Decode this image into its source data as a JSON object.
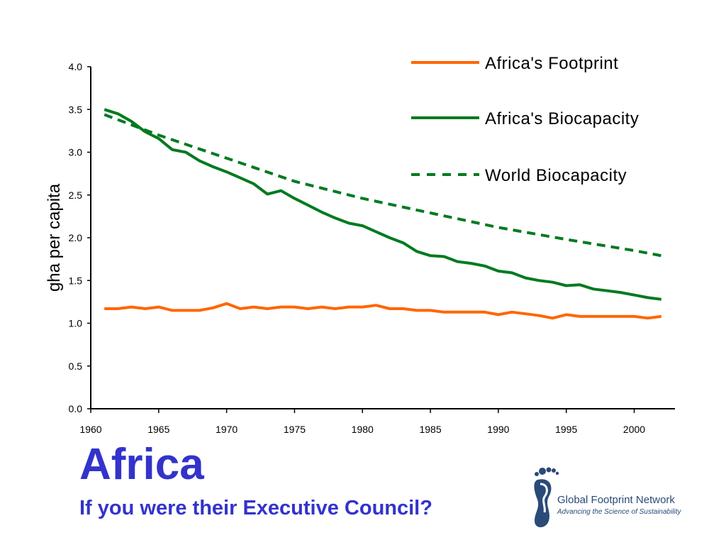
{
  "slide": {
    "title": "Africa",
    "subtitle": "If you were their Executive Council?"
  },
  "logo": {
    "name": "Global Footprint Network",
    "tagline": "Advancing the Science of Sustainability",
    "color": "#2a4a78"
  },
  "chart_data": {
    "type": "line",
    "title": "",
    "xlabel": "",
    "ylabel": "gha per capita",
    "xlim": [
      1960,
      2003
    ],
    "ylim": [
      0,
      4
    ],
    "xticks": [
      1960,
      1965,
      1970,
      1975,
      1980,
      1985,
      1990,
      1995,
      2000
    ],
    "yticks": [
      "0.0",
      "0.5",
      "1.0",
      "1.5",
      "2.0",
      "2.5",
      "3.0",
      "3.5",
      "4.0"
    ],
    "grid": false,
    "legend_position": "top-right",
    "series": [
      {
        "name": "Africa's Footprint",
        "color": "#ff6600",
        "style": "solid",
        "x": [
          1961,
          1962,
          1963,
          1964,
          1965,
          1966,
          1967,
          1968,
          1969,
          1970,
          1971,
          1972,
          1973,
          1974,
          1975,
          1976,
          1977,
          1978,
          1979,
          1980,
          1981,
          1982,
          1983,
          1984,
          1985,
          1986,
          1987,
          1988,
          1989,
          1990,
          1991,
          1992,
          1993,
          1994,
          1995,
          1996,
          1997,
          1998,
          1999,
          2000,
          2001,
          2002
        ],
        "y": [
          1.17,
          1.17,
          1.19,
          1.17,
          1.19,
          1.15,
          1.15,
          1.15,
          1.18,
          1.23,
          1.17,
          1.19,
          1.17,
          1.19,
          1.19,
          1.17,
          1.19,
          1.17,
          1.19,
          1.19,
          1.21,
          1.17,
          1.17,
          1.15,
          1.15,
          1.13,
          1.13,
          1.13,
          1.13,
          1.1,
          1.13,
          1.11,
          1.09,
          1.06,
          1.1,
          1.08,
          1.08,
          1.08,
          1.08,
          1.08,
          1.06,
          1.08
        ]
      },
      {
        "name": "Africa's Biocapacity",
        "color": "#007a1f",
        "style": "solid",
        "x": [
          1961,
          1962,
          1963,
          1964,
          1965,
          1966,
          1967,
          1968,
          1969,
          1970,
          1971,
          1972,
          1973,
          1974,
          1975,
          1976,
          1977,
          1978,
          1979,
          1980,
          1981,
          1982,
          1983,
          1984,
          1985,
          1986,
          1987,
          1988,
          1989,
          1990,
          1991,
          1992,
          1993,
          1994,
          1995,
          1996,
          1997,
          1998,
          1999,
          2000,
          2001,
          2002
        ],
        "y": [
          3.5,
          3.45,
          3.36,
          3.24,
          3.16,
          3.03,
          3.0,
          2.9,
          2.83,
          2.77,
          2.7,
          2.63,
          2.51,
          2.55,
          2.46,
          2.38,
          2.3,
          2.23,
          2.17,
          2.14,
          2.07,
          2.0,
          1.94,
          1.84,
          1.79,
          1.78,
          1.72,
          1.7,
          1.67,
          1.61,
          1.59,
          1.53,
          1.5,
          1.48,
          1.44,
          1.45,
          1.4,
          1.38,
          1.36,
          1.33,
          1.3,
          1.28
        ]
      },
      {
        "name": "World Biocapacity",
        "color": "#007a1f",
        "style": "dashed",
        "x": [
          1961,
          1965,
          1970,
          1975,
          1980,
          1985,
          1990,
          1995,
          2000,
          2002
        ],
        "y": [
          3.44,
          3.2,
          2.93,
          2.66,
          2.46,
          2.29,
          2.12,
          1.98,
          1.85,
          1.79
        ]
      }
    ]
  }
}
